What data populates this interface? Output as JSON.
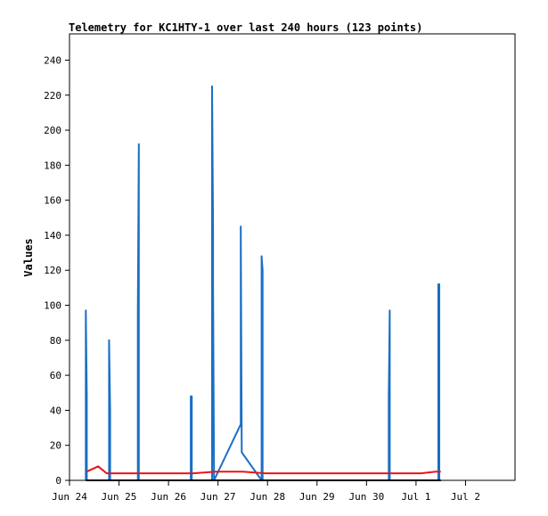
{
  "chart_data": {
    "type": "line",
    "title": "Telemetry for KC1HTY-1 over last 240 hours (123 points)",
    "xlabel": "",
    "ylabel": "Values",
    "x_ticks": [
      "Jun 24",
      "Jun 25",
      "Jun 26",
      "Jun 27",
      "Jun 28",
      "Jun 29",
      "Jun 30",
      "Jul 1",
      "Jul 2"
    ],
    "xlim": [
      0,
      9
    ],
    "ylim": [
      0,
      255
    ],
    "y_ticks": [
      0,
      20,
      40,
      60,
      80,
      100,
      120,
      140,
      160,
      180,
      200,
      220,
      240
    ],
    "grid": false,
    "legend": "none",
    "series": [
      {
        "color": "#1a6fc4",
        "x": [
          0.33,
          0.33,
          0.35,
          0.35,
          0.8,
          0.8,
          0.82,
          0.82,
          1.38,
          1.38,
          1.4,
          1.4,
          2.45,
          2.45,
          2.47,
          2.47,
          2.88,
          2.88,
          2.9,
          2.9,
          2.92,
          2.92,
          3.46,
          3.46,
          3.48,
          3.48,
          3.88,
          3.88,
          3.9,
          3.9,
          6.45,
          6.45,
          6.47,
          6.47,
          7.45,
          7.45,
          7.47,
          7.47
        ],
        "y": [
          0,
          97,
          48,
          0,
          0,
          80,
          40,
          0,
          0,
          97,
          192,
          0,
          0,
          48,
          48,
          0,
          0,
          225,
          145,
          112,
          0,
          0,
          32,
          145,
          16,
          16,
          0,
          128,
          120,
          0,
          0,
          48,
          97,
          0,
          0,
          112,
          112,
          0
        ]
      },
      {
        "color": "#e8141a",
        "x": [
          0.35,
          0.58,
          0.75,
          0.9,
          1.5,
          2.5,
          2.95,
          3.5,
          3.95,
          4.5,
          5.5,
          6.5,
          6.8,
          7.1,
          7.4,
          7.5
        ],
        "y": [
          5,
          8,
          4,
          4,
          4,
          4,
          5,
          5,
          4,
          4,
          4,
          4,
          4,
          4,
          5,
          5
        ]
      },
      {
        "color": "#000000",
        "x": [
          0.33,
          7.5
        ],
        "y": [
          0,
          0
        ]
      }
    ]
  }
}
